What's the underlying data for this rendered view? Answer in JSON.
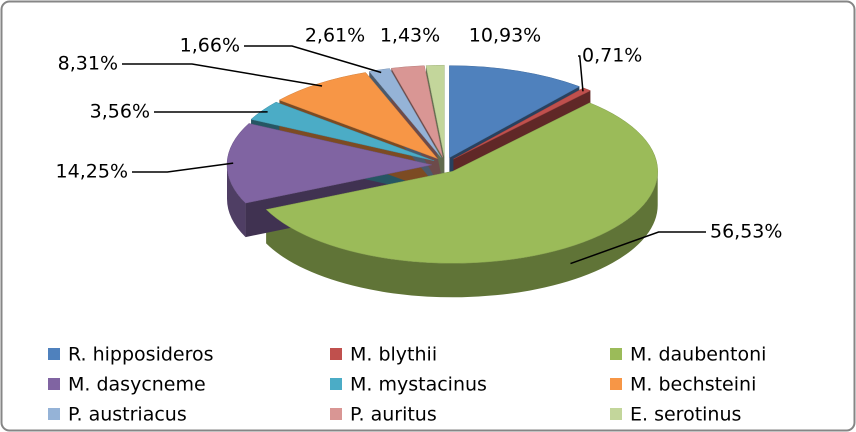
{
  "chart_data": {
    "type": "pie",
    "categories": [
      "R. hipposideros",
      "M. blythii",
      "M. daubentoni",
      "M. dasycneme",
      "M. mystacinus",
      "M. bechsteini",
      "P. austriacus",
      "P. auritus",
      "E. serotinus"
    ],
    "values": [
      10.93,
      0.71,
      56.53,
      14.25,
      3.56,
      8.31,
      1.66,
      2.61,
      1.43
    ],
    "value_labels": [
      "10,93%",
      "0,71%",
      "56,53%",
      "14,25%",
      "3,56%",
      "8,31%",
      "1,66%",
      "2,61%",
      "1,43%"
    ],
    "colors": [
      "#4f81bd",
      "#c0504d",
      "#9bbb59",
      "#8064a2",
      "#4bacc6",
      "#f79646",
      "#95b3d7",
      "#d99694",
      "#c3d69b"
    ],
    "legend": "bottom"
  }
}
